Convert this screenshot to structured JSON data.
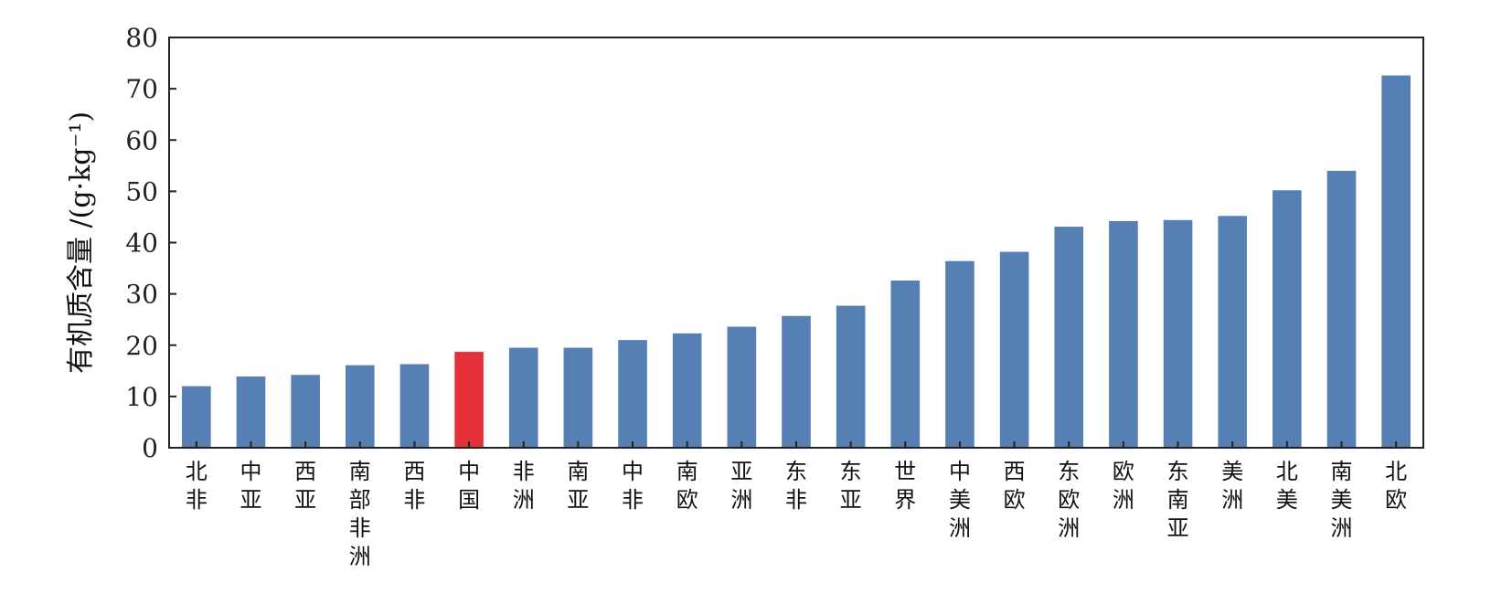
{
  "chart_data": {
    "type": "bar",
    "title": "",
    "xlabel": "",
    "ylabel": "有机质含量 /(g·kg⁻¹)",
    "ylim": [
      0,
      80
    ],
    "yticks": [
      0,
      10,
      20,
      30,
      40,
      50,
      60,
      70,
      80
    ],
    "grid": false,
    "legend": "none",
    "categories": [
      "北非",
      "中亚",
      "西亚",
      "南部非洲",
      "西非",
      "中国",
      "非洲",
      "南亚",
      "中非",
      "南欧",
      "亚洲",
      "东非",
      "东亚",
      "世界",
      "中美洲",
      "西欧",
      "东欧洲",
      "欧洲",
      "东南亚",
      "美洲",
      "北美",
      "南美洲",
      "北欧"
    ],
    "values": [
      12.0,
      13.9,
      14.2,
      16.1,
      16.3,
      18.7,
      19.5,
      19.5,
      21.0,
      22.3,
      23.6,
      25.7,
      27.7,
      32.6,
      36.4,
      38.2,
      43.1,
      44.2,
      44.4,
      45.2,
      50.2,
      54.0,
      72.6
    ],
    "colors": {
      "default": "#5680b3",
      "highlight": "#e5323a"
    },
    "highlight": "中国"
  }
}
